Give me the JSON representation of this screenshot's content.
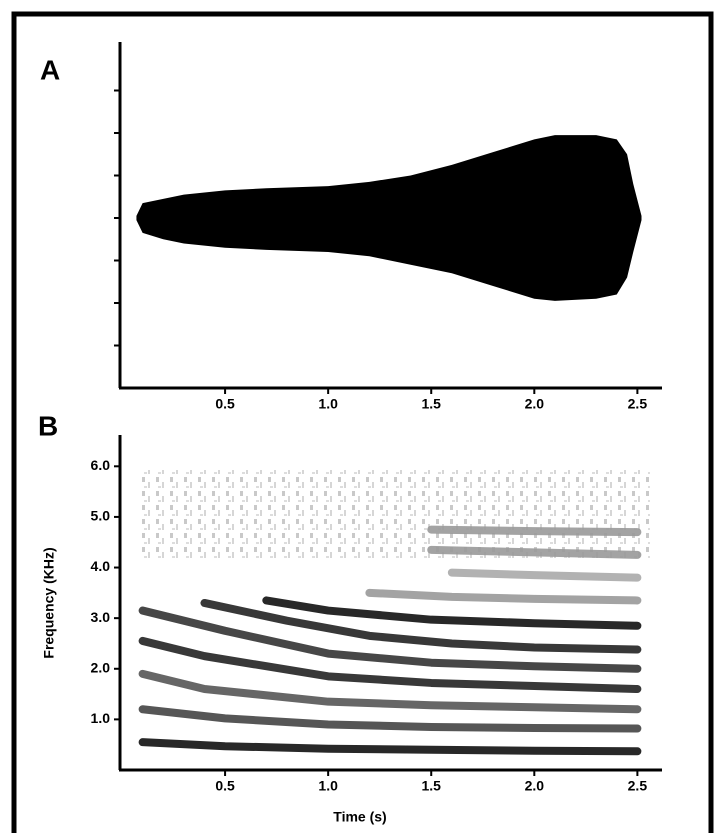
{
  "chart_data": [
    {
      "type": "waveform",
      "label": "A",
      "color": "#000000",
      "x": [
        0.07,
        0.1,
        0.2,
        0.3,
        0.5,
        0.7,
        1.0,
        1.2,
        1.4,
        1.6,
        1.8,
        2.0,
        2.1,
        2.3,
        2.4,
        2.45,
        2.48,
        2.52
      ],
      "upper": [
        0.05,
        0.35,
        0.45,
        0.55,
        0.65,
        0.7,
        0.75,
        0.85,
        1.0,
        1.25,
        1.55,
        1.85,
        1.95,
        1.95,
        1.85,
        1.5,
        0.8,
        0.05
      ],
      "lower": [
        -0.05,
        -0.35,
        -0.5,
        -0.6,
        -0.7,
        -0.75,
        -0.8,
        -0.9,
        -1.1,
        -1.3,
        -1.6,
        -1.9,
        -1.95,
        -1.9,
        -1.8,
        -1.4,
        -0.8,
        -0.05
      ],
      "xlim": [
        0,
        2.6
      ],
      "xticks": [
        0.5,
        {
          "value": 1,
          "label": "1.0"
        },
        1.5,
        {
          "value": 2,
          "label": "2.0"
        },
        2.5
      ],
      "ylim": [
        -4,
        4
      ],
      "yticks": [
        {
          "value": -3,
          "label": null
        },
        {
          "value": -2,
          "label": null
        },
        {
          "value": -1,
          "label": null
        },
        {
          "value": 0,
          "label": null
        },
        {
          "value": 1,
          "label": null
        },
        {
          "value": 2,
          "label": null
        },
        {
          "value": 3,
          "label": null
        }
      ]
    },
    {
      "type": "spectrogram",
      "label": "B",
      "xlabel": "Time (s)",
      "ylabel": "Frequency (KHz)",
      "series": [
        {
          "color": "#111111",
          "x": [
            0.1,
            0.5,
            1.0,
            1.5,
            2.0,
            2.5
          ],
          "values": [
            0.55,
            0.47,
            0.42,
            0.4,
            0.38,
            0.37
          ]
        },
        {
          "color": "#444444",
          "x": [
            0.1,
            0.5,
            1.0,
            1.5,
            2.0,
            2.5
          ],
          "values": [
            1.2,
            1.02,
            0.9,
            0.85,
            0.83,
            0.82
          ]
        },
        {
          "color": "#555555",
          "x": [
            0.1,
            0.4,
            1.0,
            1.5,
            2.0,
            2.5
          ],
          "values": [
            1.9,
            1.6,
            1.35,
            1.28,
            1.24,
            1.2
          ]
        },
        {
          "color": "#222222",
          "x": [
            0.1,
            0.4,
            1.0,
            1.5,
            2.0,
            2.5
          ],
          "values": [
            2.55,
            2.25,
            1.85,
            1.72,
            1.66,
            1.6
          ]
        },
        {
          "color": "#333333",
          "x": [
            0.1,
            0.5,
            1.0,
            1.5,
            2.0,
            2.5
          ],
          "values": [
            3.15,
            2.75,
            2.3,
            2.12,
            2.05,
            2.0
          ]
        },
        {
          "color": "#222222",
          "x": [
            0.4,
            0.8,
            1.2,
            1.6,
            2.0,
            2.5
          ],
          "values": [
            3.3,
            2.95,
            2.65,
            2.5,
            2.42,
            2.38
          ]
        },
        {
          "color": "#111111",
          "x": [
            0.7,
            1.0,
            1.5,
            2.0,
            2.5
          ],
          "values": [
            3.35,
            3.15,
            2.97,
            2.9,
            2.85
          ]
        },
        {
          "color": "#999999",
          "x": [
            1.2,
            1.6,
            2.0,
            2.5
          ],
          "values": [
            3.5,
            3.42,
            3.38,
            3.35
          ]
        },
        {
          "color": "#aaaaaa",
          "x": [
            1.6,
            2.0,
            2.5
          ],
          "values": [
            3.9,
            3.85,
            3.8
          ]
        },
        {
          "color": "#999999",
          "x": [
            1.5,
            2.0,
            2.5
          ],
          "values": [
            4.35,
            4.3,
            4.25
          ]
        },
        {
          "color": "#999999",
          "x": [
            1.5,
            2.0,
            2.5
          ],
          "values": [
            4.75,
            4.72,
            4.7
          ]
        }
      ],
      "xlim": [
        0,
        2.6
      ],
      "xticks": [
        0.5,
        {
          "value": 1,
          "label": "1.0"
        },
        1.5,
        {
          "value": 2,
          "label": "2.0"
        },
        2.5
      ],
      "ylim": [
        0,
        6.5
      ],
      "yticks": [
        {
          "value": 1,
          "label": "1.0"
        },
        {
          "value": 2,
          "label": "2.0"
        },
        {
          "value": 3,
          "label": "3.0"
        },
        {
          "value": 4,
          "label": "4.0"
        },
        {
          "value": 5,
          "label": "5.0"
        },
        {
          "value": 6,
          "label": "6.0"
        }
      ]
    }
  ]
}
